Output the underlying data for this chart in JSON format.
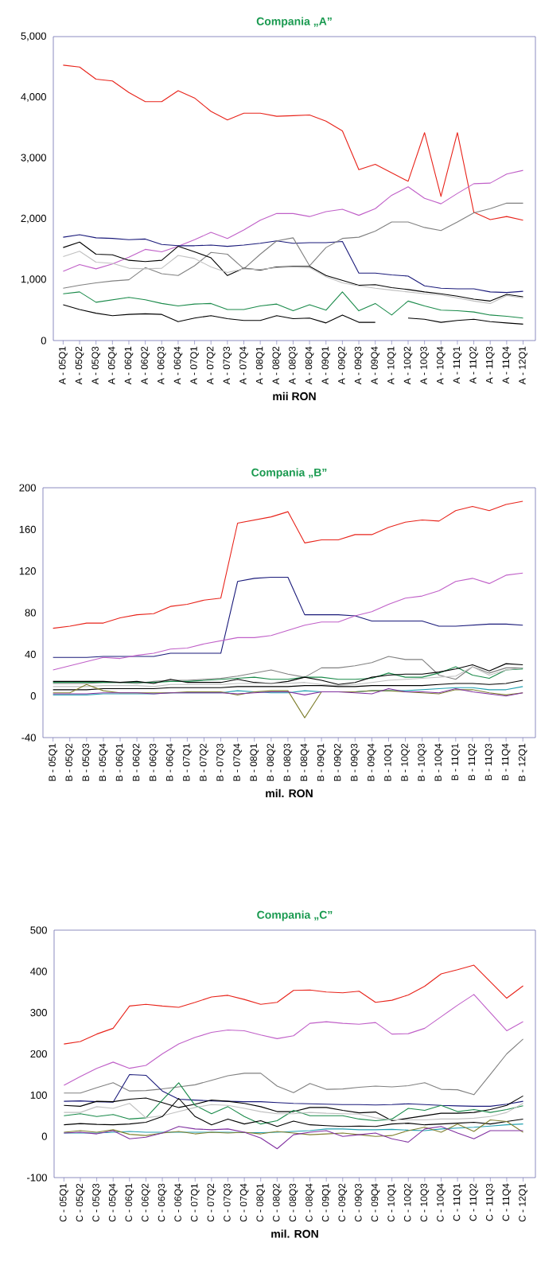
{
  "chart_data": [
    {
      "type": "line",
      "title": "Compania „A”",
      "xlabel": "mii RON",
      "categories": [
        "A - 05Q1",
        "A - 05Q2",
        "A - 05Q3",
        "A - 05Q4",
        "A - 06Q1",
        "A - 06Q2",
        "A - 06Q3",
        "A - 06Q4",
        "A - 07Q1",
        "A - 07Q2",
        "A - 07Q3",
        "A - 07Q4",
        "A - 08Q1",
        "A - 08Q2",
        "A - 08Q3",
        "A - 08Q4",
        "A - 09Q1",
        "A - 09Q2",
        "A - 09Q3",
        "A - 09Q4",
        "A - 10Q1",
        "A - 10Q2",
        "A - 10Q3",
        "A - 10Q4",
        "A - 11Q1",
        "A - 11Q2",
        "A - 11Q3",
        "A - 11Q4",
        "A - 12Q1"
      ],
      "ylim": [
        0,
        5000
      ],
      "yticks": [
        0,
        {
          "value": 1000,
          "label": "1,000"
        },
        {
          "value": 2000,
          "label": "2,000"
        },
        {
          "value": 3000,
          "label": "3,000"
        },
        {
          "value": 4000,
          "label": "4,000"
        },
        {
          "value": 5000,
          "label": "5,000"
        }
      ],
      "series": [
        {
          "color": "#e8231a",
          "values": [
            4530,
            4500,
            4300,
            4270,
            4080,
            3930,
            3930,
            4110,
            3990,
            3770,
            3630,
            3740,
            3740,
            3690,
            3700,
            3710,
            3610,
            3450,
            2810,
            2900,
            2760,
            2620,
            3420,
            2370,
            3420,
            2110,
            1990,
            2040,
            1980
          ]
        },
        {
          "color": "#c060c8",
          "values": [
            1140,
            1250,
            1180,
            1260,
            1370,
            1500,
            1460,
            1550,
            1660,
            1780,
            1680,
            1820,
            1980,
            2090,
            2090,
            2040,
            2120,
            2160,
            2060,
            2170,
            2390,
            2530,
            2340,
            2250,
            2420,
            2580,
            2590,
            2740,
            2800
          ]
        },
        {
          "color": "#1a1a7a",
          "values": [
            1700,
            1740,
            1690,
            1680,
            1660,
            1670,
            1580,
            1560,
            1560,
            1570,
            1550,
            1570,
            1600,
            1640,
            1600,
            1610,
            1610,
            1630,
            1110,
            1110,
            1080,
            1060,
            900,
            860,
            850,
            850,
            800,
            790,
            810
          ]
        },
        {
          "color": "#808080",
          "values": [
            860,
            910,
            950,
            980,
            1000,
            1200,
            1100,
            1070,
            1230,
            1450,
            1420,
            1180,
            1420,
            1640,
            1690,
            1230,
            1530,
            1680,
            1700,
            1800,
            1950,
            1950,
            1860,
            1810,
            1950,
            2100,
            2170,
            2260,
            2260
          ]
        },
        {
          "color": "#000000",
          "values": [
            1530,
            1620,
            1420,
            1410,
            1320,
            1300,
            1320,
            1550,
            1460,
            1360,
            1070,
            1190,
            1160,
            1210,
            1220,
            1220,
            1070,
            990,
            910,
            920,
            870,
            840,
            800,
            770,
            730,
            680,
            650,
            760,
            720
          ]
        },
        {
          "color": "#c0c0c0",
          "values": [
            1380,
            1470,
            1290,
            1270,
            1190,
            1180,
            1190,
            1400,
            1350,
            1210,
            1120,
            1180,
            1170,
            1200,
            1210,
            1200,
            1050,
            950,
            900,
            860,
            830,
            800,
            770,
            750,
            700,
            650,
            610,
            740,
            700
          ]
        },
        {
          "color": "#1a8a4a",
          "values": [
            770,
            800,
            630,
            670,
            710,
            670,
            610,
            570,
            600,
            610,
            510,
            510,
            570,
            600,
            490,
            590,
            500,
            800,
            490,
            610,
            420,
            650,
            570,
            500,
            490,
            470,
            420,
            400,
            370
          ]
        },
        {
          "color": "#000000",
          "values": [
            590,
            510,
            450,
            410,
            430,
            440,
            430,
            310,
            370,
            410,
            360,
            330,
            330,
            410,
            360,
            370,
            290,
            420,
            300,
            300,
            null,
            370,
            350,
            300,
            330,
            350,
            310,
            290,
            270
          ]
        }
      ]
    },
    {
      "type": "line",
      "title": "Compania „B”",
      "xlabel": "mil. RON",
      "categories": [
        "B - 05Q1",
        "B - 05Q2",
        "B - 05Q3",
        "B - 05Q4",
        "B - 06Q1",
        "B - 06Q2",
        "B - 06Q3",
        "B - 06Q4",
        "B - 07Q1",
        "B - 07Q2",
        "B - 07Q3",
        "B - 07Q4",
        "B - 08Q1",
        "B - 08Q2",
        "B - 08Q3",
        "B - 08Q4",
        "B - 09Q1",
        "B - 09Q2",
        "B - 09Q3",
        "B - 09Q4",
        "B - 10Q1",
        "B - 10Q2",
        "B - 10Q3",
        "B - 10Q4",
        "B - 11Q1",
        "B - 11Q2",
        "B - 11Q3",
        "B - 11Q4",
        "B - 12Q1"
      ],
      "ylim": [
        -40,
        200
      ],
      "yticks": [
        -40,
        0,
        40,
        80,
        120,
        160,
        200
      ],
      "series": [
        {
          "color": "#e8231a",
          "values": [
            65,
            67,
            70,
            70,
            75,
            78,
            79,
            86,
            88,
            92,
            94,
            166,
            169,
            172,
            177,
            147,
            150,
            150,
            155,
            155,
            162,
            167,
            169,
            168,
            178,
            182,
            178,
            184,
            187
          ]
        },
        {
          "color": "#1a1a7a",
          "values": [
            37,
            37,
            37,
            38,
            38,
            38,
            38,
            41,
            41,
            41,
            41,
            110,
            113,
            114,
            114,
            78,
            78,
            78,
            77,
            72,
            72,
            72,
            72,
            67,
            67,
            68,
            69,
            69,
            68
          ]
        },
        {
          "color": "#c060c8",
          "values": [
            25,
            29,
            33,
            37,
            36,
            39,
            41,
            45,
            46,
            50,
            53,
            56,
            56,
            58,
            63,
            68,
            71,
            71,
            77,
            81,
            88,
            94,
            96,
            101,
            110,
            113,
            108,
            116,
            118
          ]
        },
        {
          "color": "#808080",
          "values": [
            12,
            12,
            12,
            13,
            13,
            12,
            14,
            15,
            15,
            16,
            17,
            19,
            22,
            25,
            21,
            18,
            27,
            27,
            29,
            32,
            38,
            35,
            35,
            20,
            16,
            28,
            22,
            27,
            27
          ]
        },
        {
          "color": "#1a8a4a",
          "values": [
            13,
            13,
            13,
            13,
            13,
            13,
            13,
            14,
            14,
            15,
            16,
            17,
            18,
            16,
            16,
            18,
            18,
            16,
            16,
            17,
            22,
            18,
            18,
            22,
            28,
            20,
            17,
            25,
            26
          ]
        },
        {
          "color": "#000000",
          "values": [
            14,
            14,
            14,
            14,
            13,
            14,
            12,
            16,
            13,
            13,
            13,
            16,
            13,
            12,
            14,
            18,
            15,
            11,
            13,
            18,
            20,
            21,
            21,
            23,
            26,
            30,
            24,
            31,
            30
          ]
        },
        {
          "color": "#c0c0c0",
          "values": [
            9,
            9,
            9,
            10,
            10,
            10,
            9,
            11,
            11,
            11,
            11,
            12,
            12,
            12,
            12,
            13,
            11,
            10,
            11,
            13,
            15,
            16,
            17,
            18,
            19,
            28,
            20,
            25,
            27
          ]
        },
        {
          "color": "#000000",
          "values": [
            6,
            6,
            6,
            7,
            7,
            7,
            7,
            8,
            8,
            8,
            8,
            9,
            9,
            9,
            9,
            10,
            10,
            9,
            9,
            10,
            10,
            10,
            10,
            11,
            12,
            12,
            11,
            12,
            15
          ]
        },
        {
          "color": "#20a0b0",
          "values": [
            1,
            1,
            1,
            2,
            2,
            2,
            2,
            3,
            3,
            3,
            3,
            5,
            4,
            3,
            3,
            5,
            4,
            4,
            4,
            5,
            5,
            5,
            6,
            7,
            8,
            8,
            6,
            6,
            9
          ]
        },
        {
          "color": "#808030",
          "values": [
            3,
            3,
            11,
            5,
            3,
            3,
            3,
            3,
            4,
            4,
            4,
            1,
            4,
            5,
            5,
            -21,
            4,
            4,
            4,
            5,
            5,
            4,
            3,
            2,
            6,
            6,
            3,
            1,
            3
          ]
        },
        {
          "color": "#8030a0",
          "values": [
            2,
            2,
            2,
            3,
            3,
            3,
            2,
            3,
            3,
            3,
            3,
            2,
            3,
            4,
            4,
            1,
            4,
            4,
            3,
            2,
            7,
            4,
            4,
            3,
            7,
            4,
            2,
            0,
            3
          ]
        }
      ]
    },
    {
      "type": "line",
      "title": "Compania „C”",
      "xlabel": "mil. RON",
      "categories": [
        "C - 05Q1",
        "C - 05Q2",
        "C - 05Q3",
        "C - 05Q4",
        "C - 06Q1",
        "C - 06Q2",
        "C - 06Q3",
        "C - 06Q4",
        "C - 07Q1",
        "C - 07Q2",
        "C - 07Q3",
        "C - 07Q4",
        "C - 08Q1",
        "C - 08Q2",
        "C - 08Q3",
        "C - 08Q4",
        "C - 09Q1",
        "C - 09Q2",
        "C - 09Q3",
        "C - 09Q4",
        "C - 10Q1",
        "C - 10Q2",
        "C - 10Q3",
        "C - 10Q4",
        "C - 11Q1",
        "C - 11Q2",
        "C - 11Q3",
        "C - 11Q4",
        "C - 12Q1"
      ],
      "ylim": [
        -100,
        500
      ],
      "yticks": [
        -100,
        0,
        100,
        200,
        300,
        400,
        500
      ],
      "series": [
        {
          "color": "#e8231a",
          "values": [
            224,
            230,
            248,
            262,
            316,
            320,
            316,
            313,
            325,
            338,
            342,
            332,
            320,
            325,
            354,
            355,
            350,
            348,
            352,
            325,
            330,
            343,
            364,
            394,
            404,
            415,
            375,
            335,
            365
          ]
        },
        {
          "color": "#c060c8",
          "values": [
            124,
            145,
            165,
            180,
            165,
            172,
            200,
            224,
            240,
            252,
            258,
            256,
            246,
            237,
            244,
            274,
            278,
            274,
            272,
            276,
            248,
            249,
            262,
            290,
            318,
            344,
            300,
            256,
            278
          ]
        },
        {
          "color": "#808080",
          "values": [
            105,
            105,
            118,
            130,
            110,
            111,
            115,
            120,
            125,
            136,
            147,
            153,
            153,
            122,
            106,
            128,
            114,
            115,
            119,
            122,
            120,
            123,
            130,
            114,
            113,
            101,
            150,
            200,
            236
          ]
        },
        {
          "color": "#1a1a7a",
          "values": [
            85,
            86,
            84,
            83,
            150,
            148,
            110,
            90,
            88,
            86,
            85,
            84,
            84,
            82,
            80,
            79,
            78,
            77,
            77,
            76,
            77,
            79,
            77,
            75,
            74,
            73,
            73,
            78,
            85
          ]
        },
        {
          "color": "#000000",
          "values": [
            75,
            73,
            85,
            84,
            90,
            93,
            82,
            70,
            78,
            88,
            85,
            80,
            72,
            60,
            60,
            70,
            70,
            63,
            57,
            59,
            38,
            44,
            50,
            56,
            56,
            58,
            65,
            75,
            98
          ]
        },
        {
          "color": "#1a8a4a",
          "values": [
            50,
            55,
            48,
            53,
            42,
            45,
            88,
            130,
            75,
            55,
            72,
            48,
            30,
            38,
            63,
            50,
            50,
            50,
            42,
            38,
            42,
            68,
            63,
            75,
            60,
            65,
            58,
            65,
            74
          ]
        },
        {
          "color": "#c0c0c0",
          "values": [
            58,
            58,
            72,
            68,
            80,
            45,
            50,
            60,
            70,
            77,
            75,
            68,
            60,
            55,
            55,
            58,
            56,
            55,
            54,
            45,
            40,
            40,
            40,
            42,
            42,
            44,
            48,
            58,
            80
          ]
        },
        {
          "color": "#000000",
          "values": [
            28,
            31,
            29,
            28,
            30,
            34,
            48,
            92,
            48,
            28,
            42,
            30,
            38,
            24,
            37,
            28,
            26,
            24,
            25,
            24,
            30,
            32,
            28,
            30,
            32,
            34,
            30,
            36,
            42
          ]
        },
        {
          "color": "#20a0b0",
          "values": [
            8,
            8,
            8,
            10,
            12,
            10,
            10,
            10,
            10,
            10,
            10,
            9,
            9,
            10,
            12,
            14,
            18,
            18,
            16,
            16,
            17,
            15,
            14,
            18,
            20,
            22,
            25,
            28,
            30
          ]
        },
        {
          "color": "#808030",
          "values": [
            10,
            14,
            10,
            16,
            5,
            2,
            8,
            12,
            6,
            10,
            8,
            10,
            6,
            12,
            8,
            4,
            6,
            8,
            4,
            0,
            2,
            14,
            22,
            10,
            30,
            12,
            40,
            36,
            10
          ]
        },
        {
          "color": "#8030a0",
          "values": [
            8,
            10,
            6,
            14,
            -6,
            -2,
            8,
            24,
            18,
            16,
            18,
            10,
            -4,
            -30,
            4,
            10,
            14,
            0,
            4,
            8,
            -6,
            -14,
            18,
            24,
            8,
            -6,
            14,
            14,
            14
          ]
        }
      ]
    }
  ]
}
